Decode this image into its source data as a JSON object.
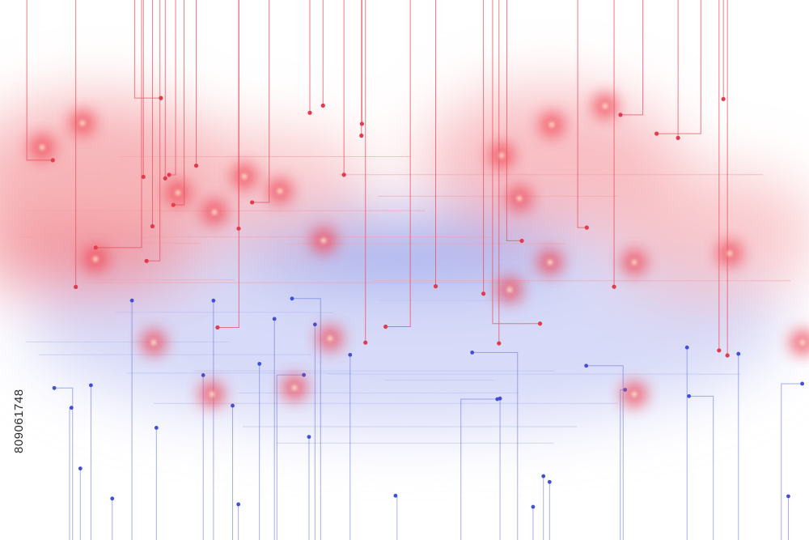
{
  "image_id": "809061748"
}
